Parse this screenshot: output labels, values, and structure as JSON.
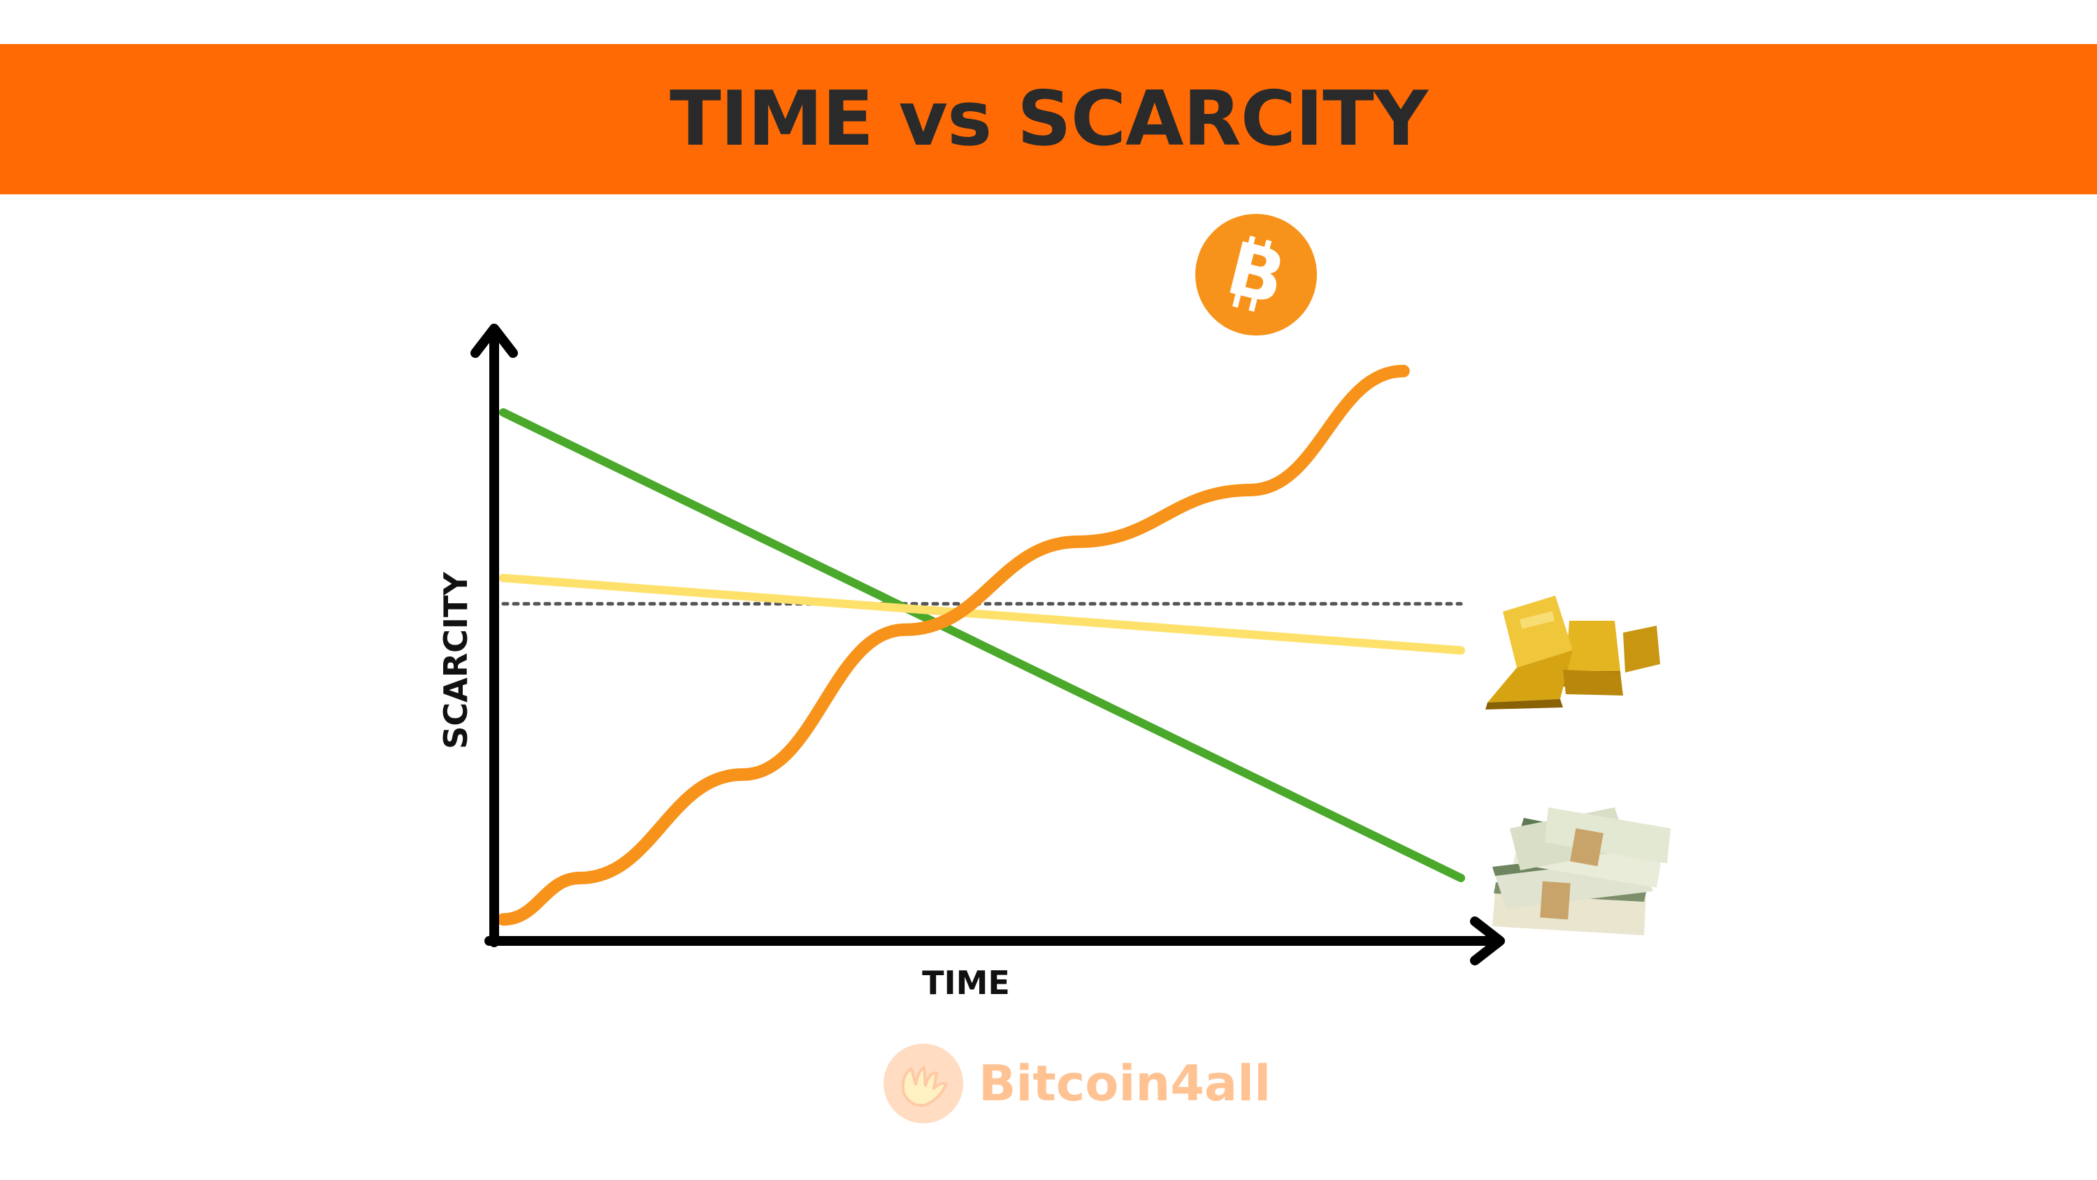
{
  "header": {
    "title": "TIME vs SCARCITY"
  },
  "watermark": {
    "text": "Bitcoin4all"
  },
  "colors": {
    "banner": "#ff6a05",
    "bitcoin": "#f7931a",
    "gold": "#fde16b",
    "fiat": "#4aa82a",
    "reference": "#555555",
    "axis": "#000000"
  },
  "icons": {
    "bitcoin": "bitcoin-logo-icon",
    "gold": "gold-bars-icon",
    "fiat": "cash-stacks-icon",
    "logo": "bitcoin4all-hands-logo"
  },
  "chart_data": {
    "type": "line",
    "title": "TIME vs SCARCITY",
    "xlabel": "TIME",
    "ylabel": "SCARCITY",
    "axis_ticks": false,
    "grid": false,
    "legend": "none",
    "series_annotations": "icons at line ends (bitcoin logo, gold bars, cash stacks)",
    "series": [
      {
        "icon": "bitcoin-logo-icon",
        "color": "#f7931a",
        "shape": "stepped-rising-curve",
        "x": [
          0,
          0.08,
          0.25,
          0.42,
          0.6,
          0.78,
          0.94
        ],
        "y": [
          0.02,
          0.1,
          0.3,
          0.58,
          0.75,
          0.85,
          1.08
        ]
      },
      {
        "icon": "gold-bars-icon",
        "color": "#fde16b",
        "shape": "straight",
        "x": [
          0,
          1
        ],
        "y": [
          0.68,
          0.54
        ]
      },
      {
        "icon": "cash-stacks-icon",
        "color": "#4aa82a",
        "shape": "straight",
        "x": [
          0,
          1
        ],
        "y": [
          1.0,
          0.1
        ]
      }
    ],
    "reference_line": {
      "style": "dotted",
      "color": "#555555",
      "y": 0.63
    },
    "xlim": [
      0,
      1
    ],
    "ylim": [
      0,
      1.1
    ]
  }
}
